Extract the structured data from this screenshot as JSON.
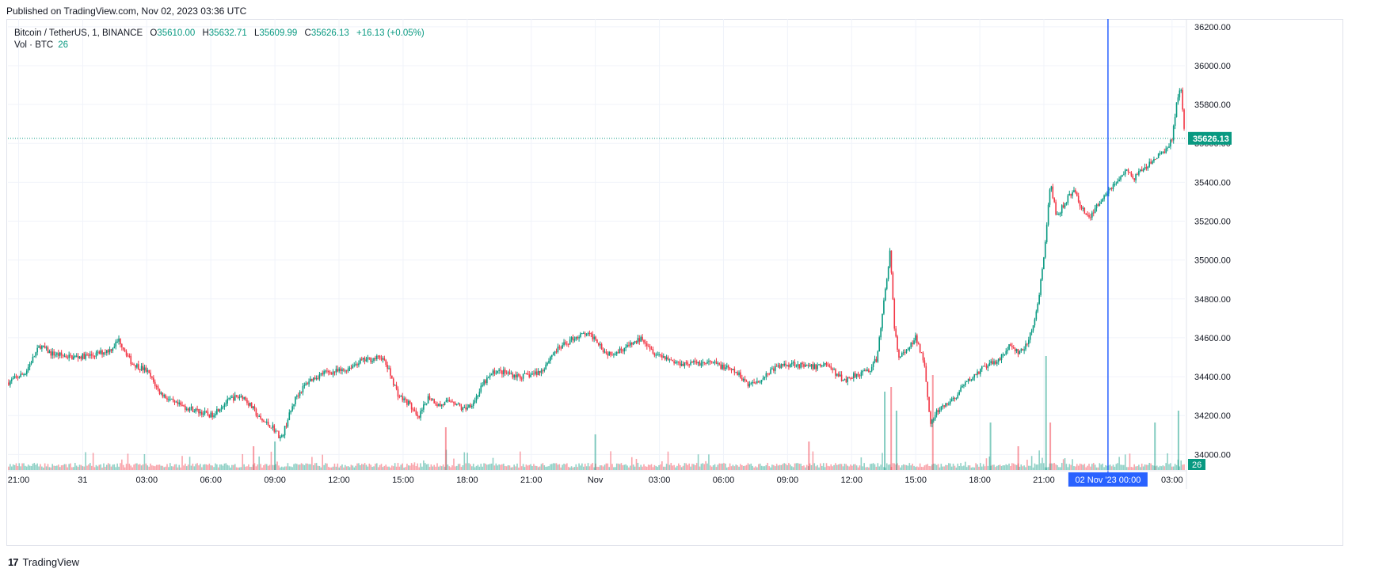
{
  "header": {
    "published": "Published on TradingView.com, Nov 02, 2023 03:36 UTC"
  },
  "legend": {
    "symbol": "Bitcoin / TetherUS, 1, BINANCE",
    "o_label": "O",
    "o": "35610.00",
    "h_label": "H",
    "h": "35632.71",
    "l_label": "L",
    "l": "35609.99",
    "c_label": "C",
    "c": "35626.13",
    "change": "+16.13 (+0.05%)",
    "vol_label": "Vol · BTC",
    "vol_value": "26"
  },
  "footer": {
    "brand": "TradingView",
    "logo": "17"
  },
  "colors": {
    "up": "#089981",
    "down": "#f23645",
    "crosshair": "#2962ff",
    "grid": "#f0f3fa"
  },
  "chart_data": {
    "type": "candlestick",
    "title": "Bitcoin / TetherUS, 1, BINANCE",
    "ylim": [
      33920,
      36240
    ],
    "y_ticks": [
      "36200.00",
      "36000.00",
      "35800.00",
      "35600.00",
      "35400.00",
      "35200.00",
      "35000.00",
      "34800.00",
      "34600.00",
      "34400.00",
      "34200.00",
      "34000.00"
    ],
    "y_tick_values": [
      36200,
      36000,
      35800,
      35600,
      35400,
      35200,
      35000,
      34800,
      34600,
      34400,
      34200,
      34000
    ],
    "x_ticks": [
      "21:00",
      "31",
      "03:00",
      "06:00",
      "09:00",
      "12:00",
      "15:00",
      "18:00",
      "21:00",
      "Nov",
      "03:00",
      "06:00",
      "09:00",
      "12:00",
      "15:00",
      "18:00",
      "21:00",
      "00:00",
      "03:00"
    ],
    "x_tick_hours": [
      0,
      3,
      6,
      9,
      12,
      15,
      18,
      21,
      24,
      27,
      30,
      33,
      36,
      39,
      42,
      45,
      48,
      51,
      54
    ],
    "x_range_hours": [
      -0.5,
      54.6
    ],
    "last_price": "35626.13",
    "last_price_value": 35626.13,
    "volume_label": "26",
    "crosshair_label": "02 Nov '23   00:00",
    "crosshair_hour": 51,
    "price_path": [
      [
        -0.5,
        34370
      ],
      [
        0.3,
        34420
      ],
      [
        1.0,
        34560
      ],
      [
        1.5,
        34520
      ],
      [
        2.5,
        34500
      ],
      [
        3.5,
        34510
      ],
      [
        4.3,
        34540
      ],
      [
        4.7,
        34590
      ],
      [
        5.3,
        34470
      ],
      [
        6.0,
        34430
      ],
      [
        6.6,
        34320
      ],
      [
        7.3,
        34260
      ],
      [
        8.2,
        34230
      ],
      [
        9.0,
        34200
      ],
      [
        9.5,
        34250
      ],
      [
        10.0,
        34290
      ],
      [
        10.5,
        34300
      ],
      [
        11.0,
        34230
      ],
      [
        11.3,
        34180
      ],
      [
        11.9,
        34140
      ],
      [
        12.3,
        34080
      ],
      [
        12.6,
        34180
      ],
      [
        13.0,
        34300
      ],
      [
        13.6,
        34380
      ],
      [
        14.3,
        34420
      ],
      [
        15.2,
        34430
      ],
      [
        16.0,
        34480
      ],
      [
        16.5,
        34490
      ],
      [
        17.0,
        34500
      ],
      [
        17.3,
        34440
      ],
      [
        17.8,
        34300
      ],
      [
        18.3,
        34260
      ],
      [
        18.7,
        34180
      ],
      [
        19.2,
        34300
      ],
      [
        19.7,
        34250
      ],
      [
        20.3,
        34280
      ],
      [
        20.8,
        34230
      ],
      [
        21.3,
        34270
      ],
      [
        21.8,
        34370
      ],
      [
        22.3,
        34430
      ],
      [
        22.8,
        34420
      ],
      [
        23.5,
        34400
      ],
      [
        24.0,
        34410
      ],
      [
        24.5,
        34430
      ],
      [
        25.0,
        34520
      ],
      [
        25.5,
        34560
      ],
      [
        26.0,
        34600
      ],
      [
        26.5,
        34620
      ],
      [
        27.0,
        34600
      ],
      [
        27.5,
        34520
      ],
      [
        28.0,
        34530
      ],
      [
        28.6,
        34560
      ],
      [
        29.2,
        34600
      ],
      [
        29.8,
        34520
      ],
      [
        30.3,
        34500
      ],
      [
        30.8,
        34470
      ],
      [
        31.4,
        34470
      ],
      [
        32.0,
        34470
      ],
      [
        32.5,
        34470
      ],
      [
        33.0,
        34450
      ],
      [
        33.6,
        34420
      ],
      [
        34.2,
        34360
      ],
      [
        34.8,
        34390
      ],
      [
        35.3,
        34440
      ],
      [
        35.8,
        34460
      ],
      [
        36.3,
        34470
      ],
      [
        36.8,
        34450
      ],
      [
        37.3,
        34450
      ],
      [
        37.8,
        34470
      ],
      [
        38.3,
        34410
      ],
      [
        38.7,
        34380
      ],
      [
        39.1,
        34410
      ],
      [
        39.5,
        34420
      ],
      [
        39.9,
        34440
      ],
      [
        40.2,
        34500
      ],
      [
        40.5,
        34780
      ],
      [
        40.8,
        35050
      ],
      [
        41.0,
        34650
      ],
      [
        41.2,
        34500
      ],
      [
        41.6,
        34530
      ],
      [
        42.0,
        34600
      ],
      [
        42.4,
        34480
      ],
      [
        42.7,
        34150
      ],
      [
        43.0,
        34220
      ],
      [
        43.4,
        34250
      ],
      [
        43.9,
        34300
      ],
      [
        44.3,
        34360
      ],
      [
        44.7,
        34400
      ],
      [
        45.1,
        34440
      ],
      [
        45.6,
        34470
      ],
      [
        46.0,
        34500
      ],
      [
        46.4,
        34560
      ],
      [
        46.8,
        34520
      ],
      [
        47.2,
        34560
      ],
      [
        47.6,
        34700
      ],
      [
        47.9,
        34920
      ],
      [
        48.1,
        35120
      ],
      [
        48.3,
        35400
      ],
      [
        48.6,
        35220
      ],
      [
        49.0,
        35300
      ],
      [
        49.4,
        35360
      ],
      [
        49.8,
        35260
      ],
      [
        50.2,
        35220
      ],
      [
        50.6,
        35300
      ],
      [
        51.0,
        35360
      ],
      [
        51.4,
        35400
      ],
      [
        51.8,
        35460
      ],
      [
        52.2,
        35420
      ],
      [
        52.6,
        35460
      ],
      [
        53.0,
        35500
      ],
      [
        53.4,
        35540
      ],
      [
        53.8,
        35580
      ],
      [
        54.0,
        35620
      ],
      [
        54.2,
        35800
      ],
      [
        54.4,
        35900
      ],
      [
        54.6,
        35626
      ]
    ],
    "volume_spikes": [
      [
        40.55,
        0.33
      ],
      [
        40.85,
        0.35
      ],
      [
        41.1,
        0.25
      ],
      [
        42.8,
        0.4
      ],
      [
        48.1,
        0.48
      ],
      [
        48.3,
        0.2
      ],
      [
        54.3,
        0.25
      ],
      [
        20.0,
        0.18
      ],
      [
        27.0,
        0.15
      ],
      [
        37.0,
        0.12
      ],
      [
        12.0,
        0.12
      ],
      [
        11.0,
        0.1
      ],
      [
        45.5,
        0.2
      ],
      [
        46.8,
        0.1
      ],
      [
        53.2,
        0.2
      ]
    ]
  }
}
